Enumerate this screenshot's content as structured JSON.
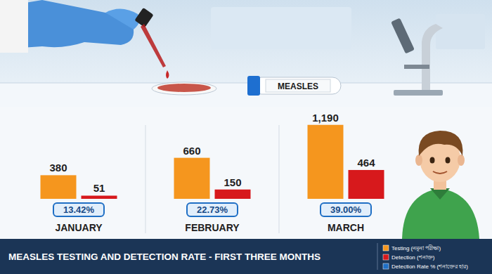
{
  "chart_data": {
    "type": "bar",
    "title": "MEASLES TESTING AND DETECTION RATE - FIRST THREE MONTHS",
    "annotations": [
      "MEASLES"
    ],
    "categories": [
      "JANUARY",
      "FEBRUARY",
      "MARCH"
    ],
    "series": [
      {
        "name": "Testing (নমুনা পরীক্ষা)",
        "color": "#f5961e",
        "type": "bar",
        "values": [
          380,
          660,
          1190
        ],
        "value_labels": [
          "380",
          "660",
          "1,190"
        ]
      },
      {
        "name": "Detection (শনাক্ত)",
        "color": "#d7191c",
        "type": "bar",
        "values": [
          51,
          150,
          464
        ],
        "value_labels": [
          "51",
          "150",
          "464"
        ]
      },
      {
        "name": "Detection Rate % (শনাক্তের হার)",
        "color": "#1f6fc5",
        "type": "badge",
        "values": [
          13.42,
          22.73,
          39.0
        ],
        "value_labels": [
          "13.42%",
          "22.73%",
          "39.00%"
        ]
      }
    ],
    "ylim": [
      0,
      1300
    ],
    "data_labels": true,
    "tick_labels": false,
    "legend": "lower right"
  }
}
